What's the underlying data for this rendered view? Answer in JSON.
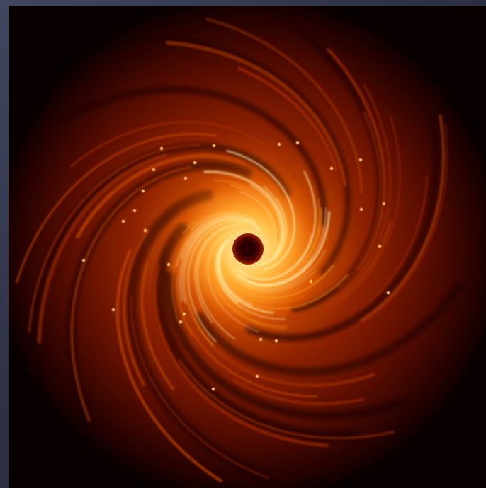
{
  "image": {
    "subject": "spiral-disk",
    "colors": {
      "background_edge": "#080000",
      "outer_disk": "#7a1600",
      "mid_disk": "#c44600",
      "inner_disk": "#ff9a1a",
      "core_glow": "#fff2b0",
      "central_hole": "#2a0000",
      "clump": "#ffd27a"
    }
  }
}
